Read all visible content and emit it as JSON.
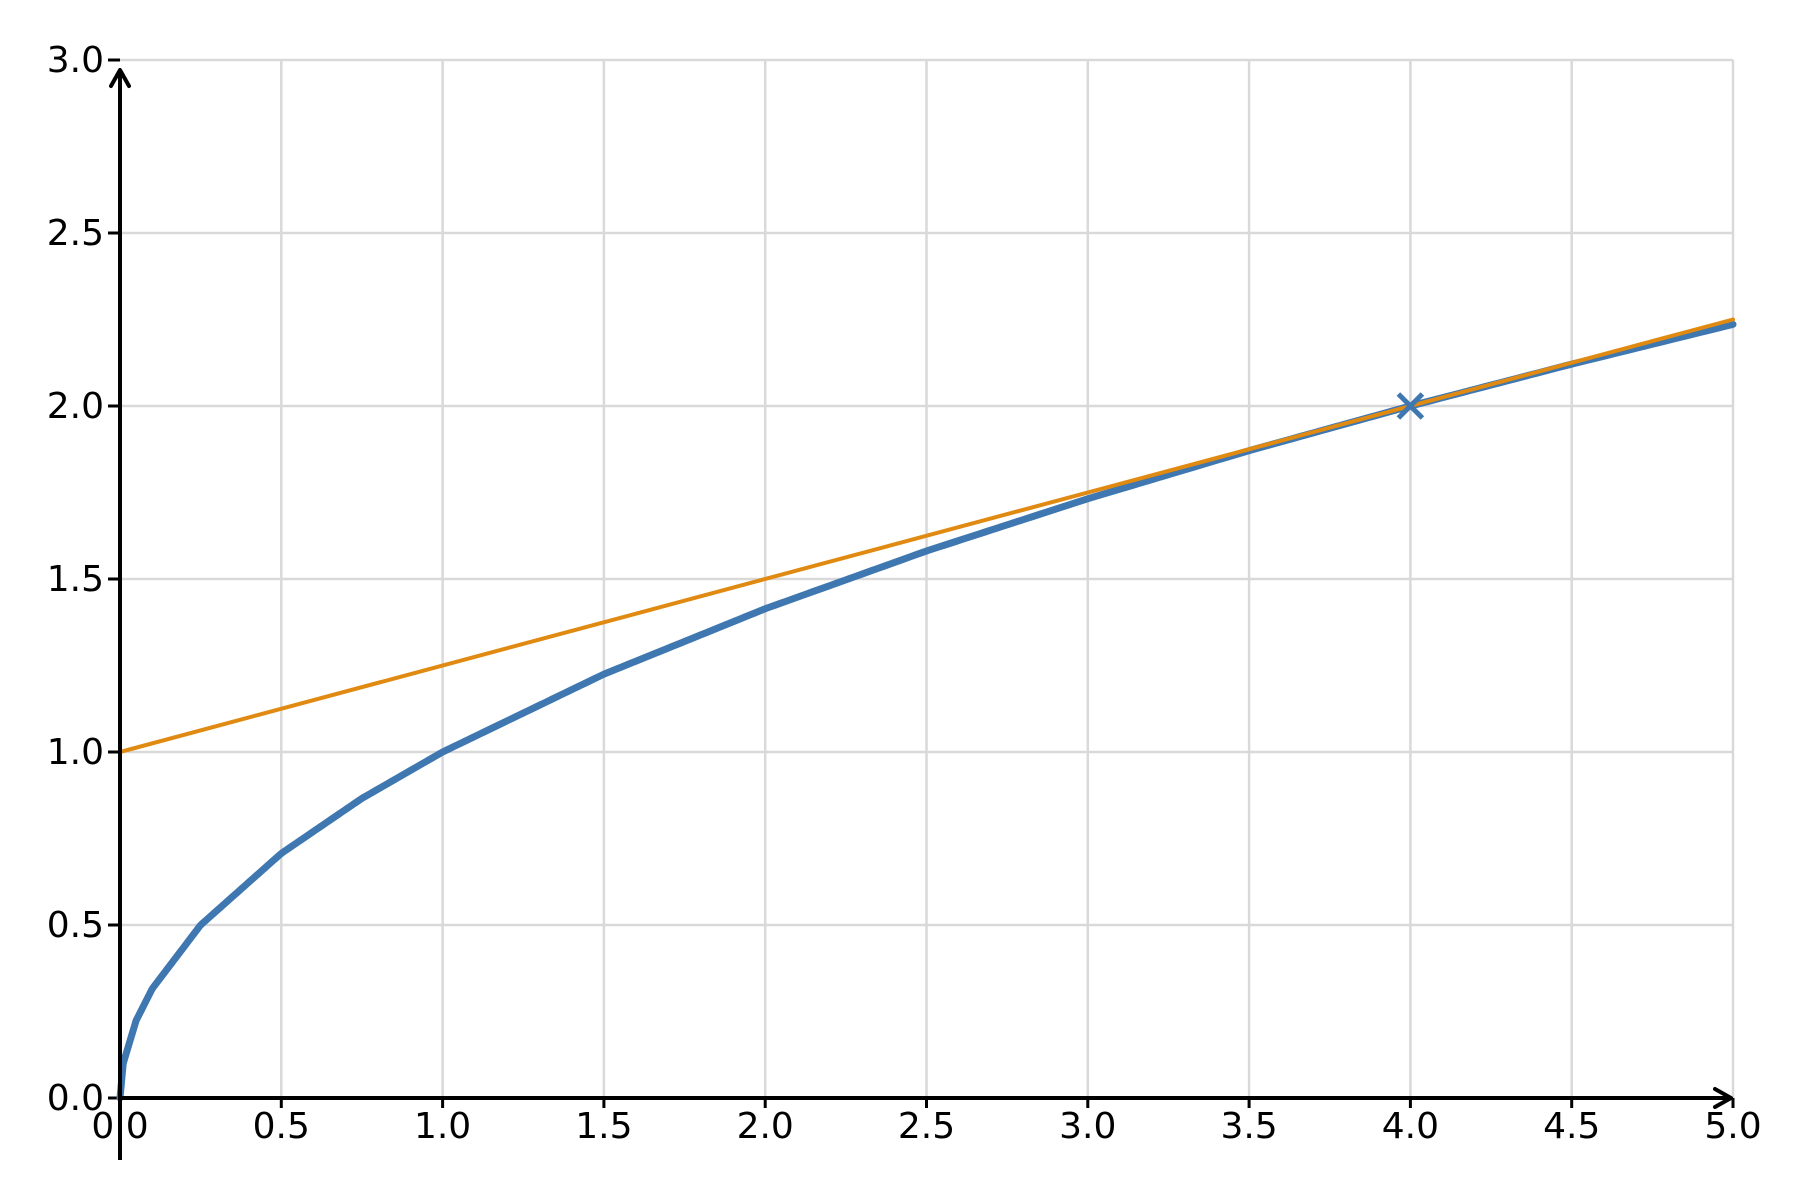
{
  "chart_data": {
    "type": "line",
    "xlim": [
      0,
      5
    ],
    "ylim": [
      0,
      3
    ],
    "x_ticks": [
      "0.0",
      "0.5",
      "1.0",
      "1.5",
      "2.0",
      "2.5",
      "3.0",
      "3.5",
      "4.0",
      "4.5",
      "5.0"
    ],
    "y_ticks": [
      "0.0",
      "0.5",
      "1.0",
      "1.5",
      "2.0",
      "2.5",
      "3.0"
    ],
    "grid": true,
    "series": [
      {
        "color": "#3f77b0",
        "x": [
          0,
          0.01,
          0.05,
          0.1,
          0.25,
          0.5,
          0.75,
          1.0,
          1.5,
          2.0,
          2.5,
          3.0,
          3.5,
          4.0,
          4.5,
          5.0
        ],
        "y": [
          0,
          0.1,
          0.224,
          0.316,
          0.5,
          0.707,
          0.866,
          1.0,
          1.225,
          1.414,
          1.581,
          1.732,
          1.871,
          2.0,
          2.121,
          2.236
        ]
      },
      {
        "color": "#e08a12",
        "x": [
          0,
          5
        ],
        "y": [
          1.0,
          2.25
        ]
      }
    ],
    "markers": [
      {
        "x": 4.0,
        "y": 2.0,
        "symbol": "x",
        "color": "#3f77b0"
      }
    ]
  }
}
